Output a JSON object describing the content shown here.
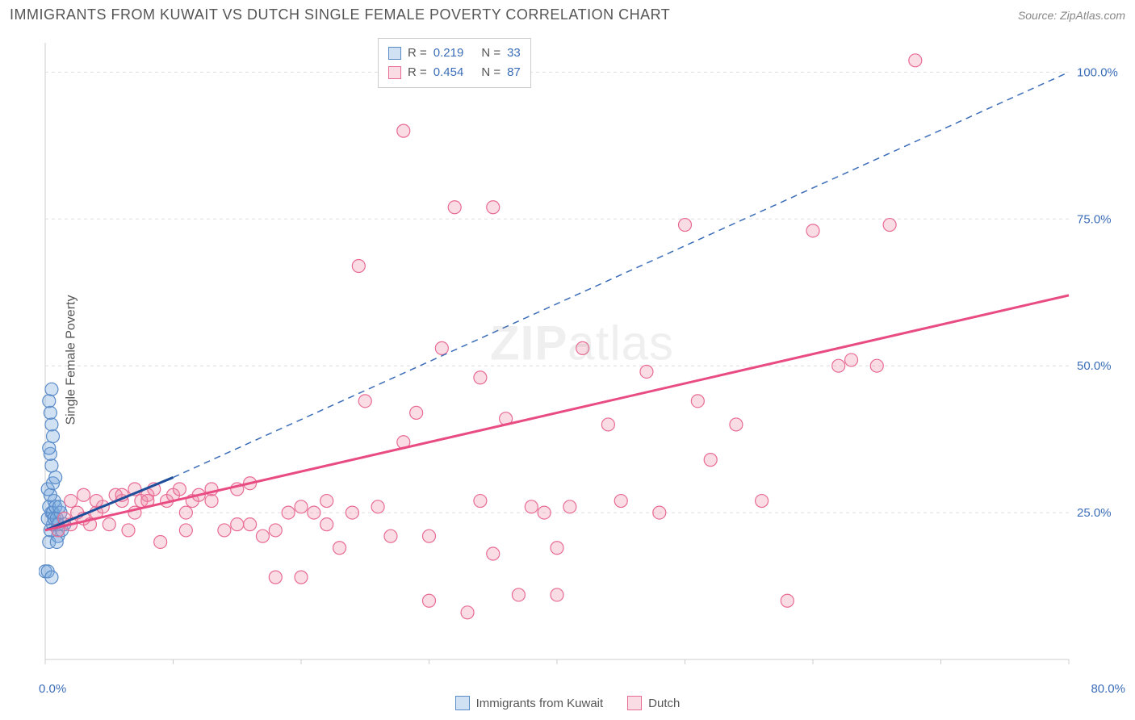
{
  "header": {
    "title": "IMMIGRANTS FROM KUWAIT VS DUTCH SINGLE FEMALE POVERTY CORRELATION CHART",
    "source_prefix": "Source: ",
    "source": "ZipAtlas.com"
  },
  "ylabel": "Single Female Poverty",
  "watermark": {
    "bold": "ZIP",
    "light": "atlas"
  },
  "axis": {
    "x_min_label": "0.0%",
    "x_max_label": "80.0%",
    "x_min": 0,
    "x_max": 80,
    "y_min": 0,
    "y_max": 105,
    "gridlines_y": [
      {
        "value": 25,
        "label": "25.0%"
      },
      {
        "value": 50,
        "label": "50.0%"
      },
      {
        "value": 75,
        "label": "75.0%"
      },
      {
        "value": 100,
        "label": "100.0%"
      }
    ],
    "x_ticks": [
      0,
      10,
      20,
      30,
      40,
      50,
      60,
      70,
      80
    ]
  },
  "colors": {
    "blue_fill": "rgba(120,170,220,0.35)",
    "blue_stroke": "#5a8bc9",
    "pink_fill": "rgba(240,140,170,0.30)",
    "pink_stroke": "#e86b94",
    "blue_line": "#1f4e9b",
    "blue_dash": "#3b6db8",
    "pink_line": "#e84c82",
    "grid": "#dddddd",
    "axis_border": "#cccccc",
    "text": "#555555",
    "value": "#3b6db8"
  },
  "marker_radius": 8,
  "series": [
    {
      "name": "Immigrants from Kuwait",
      "color_key": "blue",
      "r_label": "R = ",
      "r_value": "0.219",
      "n_label": "N = ",
      "n_value": "33",
      "trend_solid": {
        "x1": 0,
        "y1": 22,
        "x2": 10,
        "y2": 31
      },
      "trend_dash": {
        "x1": 10,
        "y1": 31,
        "x2": 80,
        "y2": 100
      },
      "points": [
        [
          0,
          15
        ],
        [
          0.2,
          15
        ],
        [
          0.5,
          14
        ],
        [
          0.3,
          20
        ],
        [
          0.4,
          22
        ],
        [
          0.6,
          23
        ],
        [
          0.2,
          24
        ],
        [
          0.5,
          25
        ],
        [
          0.3,
          26
        ],
        [
          0.7,
          27
        ],
        [
          0.4,
          28
        ],
        [
          0.2,
          29
        ],
        [
          0.6,
          30
        ],
        [
          0.8,
          31
        ],
        [
          0.5,
          33
        ],
        [
          0.4,
          35
        ],
        [
          0.3,
          36
        ],
        [
          0.6,
          38
        ],
        [
          0.5,
          40
        ],
        [
          0.4,
          42
        ],
        [
          0.3,
          44
        ],
        [
          0.5,
          46
        ],
        [
          0.6,
          25
        ],
        [
          0.7,
          24
        ],
        [
          0.8,
          26
        ],
        [
          0.9,
          24
        ],
        [
          1.0,
          23
        ],
        [
          1.2,
          25
        ],
        [
          1.5,
          23
        ],
        [
          1.0,
          21
        ],
        [
          1.3,
          22
        ],
        [
          0.9,
          20
        ],
        [
          1.1,
          26
        ]
      ]
    },
    {
      "name": "Dutch",
      "color_key": "pink",
      "r_label": "R = ",
      "r_value": "0.454",
      "n_label": "N = ",
      "n_value": "87",
      "trend_solid": {
        "x1": 0,
        "y1": 22,
        "x2": 80,
        "y2": 62
      },
      "trend_dash": null,
      "points": [
        [
          1,
          22
        ],
        [
          1.5,
          24
        ],
        [
          2,
          23
        ],
        [
          2.5,
          25
        ],
        [
          3,
          24
        ],
        [
          3.5,
          23
        ],
        [
          4,
          25
        ],
        [
          4.5,
          26
        ],
        [
          5,
          23
        ],
        [
          5.5,
          28
        ],
        [
          6,
          27
        ],
        [
          6.5,
          22
        ],
        [
          7,
          29
        ],
        [
          7.5,
          27
        ],
        [
          8,
          28
        ],
        [
          8.5,
          29
        ],
        [
          9,
          20
        ],
        [
          9.5,
          27
        ],
        [
          10,
          28
        ],
        [
          10.5,
          29
        ],
        [
          11,
          25
        ],
        [
          11.5,
          27
        ],
        [
          12,
          28
        ],
        [
          13,
          29
        ],
        [
          14,
          22
        ],
        [
          15,
          23
        ],
        [
          15,
          29
        ],
        [
          16,
          30
        ],
        [
          17,
          21
        ],
        [
          18,
          22
        ],
        [
          18,
          14
        ],
        [
          19,
          25
        ],
        [
          20,
          14
        ],
        [
          20,
          26
        ],
        [
          21,
          25
        ],
        [
          22,
          23
        ],
        [
          22,
          27
        ],
        [
          23,
          19
        ],
        [
          24,
          25
        ],
        [
          24.5,
          67
        ],
        [
          25,
          44
        ],
        [
          26,
          26
        ],
        [
          27,
          21
        ],
        [
          28,
          90
        ],
        [
          28,
          37
        ],
        [
          29,
          42
        ],
        [
          30,
          21
        ],
        [
          30,
          10
        ],
        [
          31,
          53
        ],
        [
          32,
          77
        ],
        [
          33,
          8
        ],
        [
          34,
          48
        ],
        [
          34,
          27
        ],
        [
          35,
          18
        ],
        [
          35,
          77
        ],
        [
          36,
          41
        ],
        [
          37,
          11
        ],
        [
          38,
          26
        ],
        [
          39,
          25
        ],
        [
          40,
          19
        ],
        [
          40,
          11
        ],
        [
          41,
          26
        ],
        [
          42,
          53
        ],
        [
          44,
          40
        ],
        [
          45,
          27
        ],
        [
          47,
          49
        ],
        [
          48,
          25
        ],
        [
          50,
          74
        ],
        [
          51,
          44
        ],
        [
          52,
          34
        ],
        [
          54,
          40
        ],
        [
          56,
          27
        ],
        [
          58,
          10
        ],
        [
          60,
          73
        ],
        [
          62,
          50
        ],
        [
          63,
          51
        ],
        [
          65,
          50
        ],
        [
          66,
          74
        ],
        [
          68,
          102
        ],
        [
          2,
          27
        ],
        [
          3,
          28
        ],
        [
          4,
          27
        ],
        [
          6,
          28
        ],
        [
          7,
          25
        ],
        [
          8,
          27
        ],
        [
          11,
          22
        ],
        [
          13,
          27
        ],
        [
          16,
          23
        ]
      ]
    }
  ],
  "legend": {
    "series1": "Immigrants from Kuwait",
    "series2": "Dutch"
  }
}
